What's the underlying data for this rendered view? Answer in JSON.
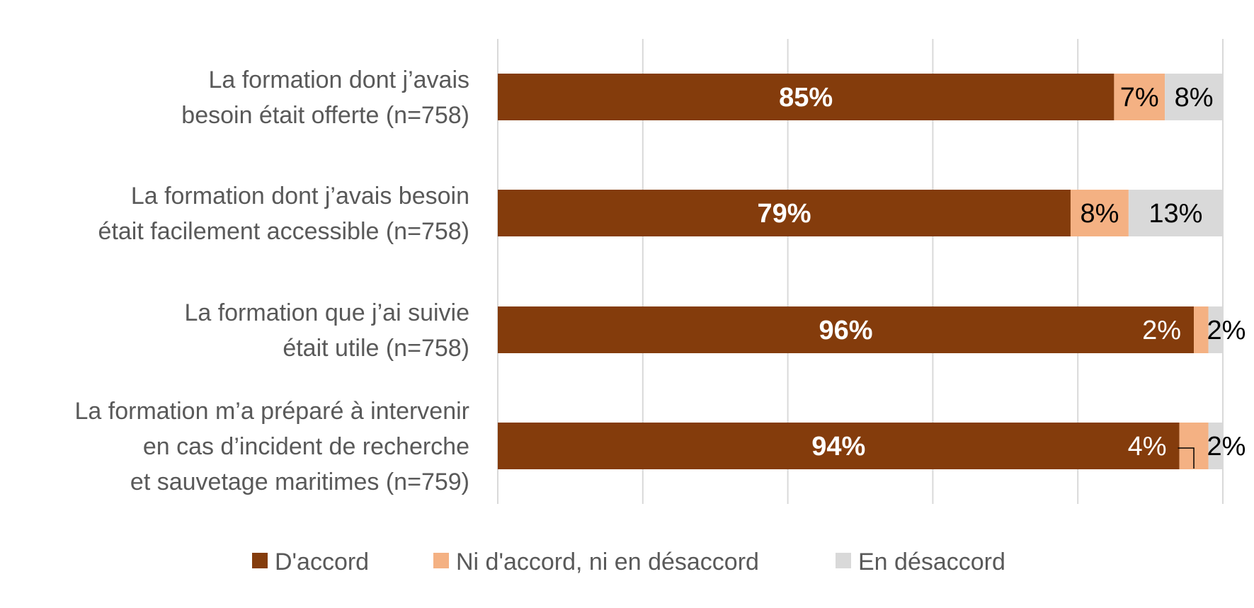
{
  "chart_data": {
    "type": "bar",
    "orientation": "horizontal",
    "stacked": true,
    "categories": [
      [
        "La formation dont j’avais",
        "besoin était offerte (n=758)"
      ],
      [
        "La formation dont j’avais besoin",
        "était facilement accessible (n=758)"
      ],
      [
        "La formation que j’ai suivie",
        "était utile (n=758)"
      ],
      [
        "La formation m’a préparé à intervenir",
        "en cas d’incident de recherche",
        "et sauvetage maritimes (n=759)"
      ]
    ],
    "series": [
      {
        "name": "D'accord",
        "color": "#843C0C",
        "values": [
          85,
          79,
          96,
          94
        ],
        "labels": [
          "85%",
          "79%",
          "96%",
          "94%"
        ]
      },
      {
        "name": "Ni d'accord, ni en désaccord",
        "color": "#F4B183",
        "values": [
          7,
          8,
          2,
          4
        ],
        "labels": [
          "7%",
          "8%",
          "2%",
          "4%"
        ]
      },
      {
        "name": "En désaccord",
        "color": "#D9D9D9",
        "values": [
          8,
          13,
          2,
          2
        ],
        "labels": [
          "8%",
          "13%",
          "2%",
          "2%"
        ]
      }
    ],
    "xlim": [
      0,
      100
    ],
    "grid": true,
    "legend_position": "bottom"
  }
}
